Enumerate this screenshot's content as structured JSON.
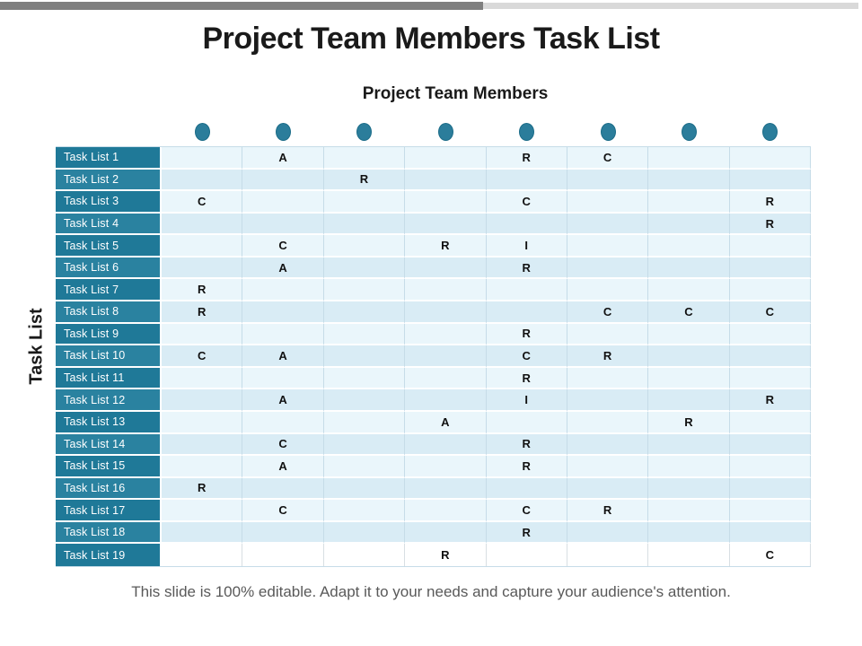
{
  "title": "Project Team Members Task List",
  "subtitle": "Project Team Members",
  "side_label": "Task List",
  "footer": "This slide is 100% editable. Adapt it to your needs and capture your audience's attention.",
  "colors": {
    "top_bar_dark": "#7f7f7f",
    "top_bar_light": "#d9d9d9",
    "header_teal": "#1f7998",
    "header_teal_alt": "#2a82a0",
    "circle_teal": "#2b7d9b",
    "row_light": "#eaf6fb",
    "row_dark": "#d9ecf5",
    "row_white": "#ffffff",
    "grid_line": "#c6dce8",
    "letter_color": "#111111",
    "footer_gray": "#595959",
    "title_black": "#1a1a1a"
  },
  "matrix": {
    "member_count": 8,
    "rows": [
      {
        "label": "Task List 1",
        "cells": [
          "",
          "A",
          "",
          "",
          "R",
          "C",
          "",
          ""
        ]
      },
      {
        "label": "Task List 2",
        "cells": [
          "",
          "",
          "R",
          "",
          "",
          "",
          "",
          ""
        ]
      },
      {
        "label": "Task List 3",
        "cells": [
          "C",
          "",
          "",
          "",
          "C",
          "",
          "",
          "R"
        ]
      },
      {
        "label": "Task List 4",
        "cells": [
          "",
          "",
          "",
          "",
          "",
          "",
          "",
          "R"
        ]
      },
      {
        "label": "Task List 5",
        "cells": [
          "",
          "C",
          "",
          "R",
          "I",
          "",
          "",
          ""
        ]
      },
      {
        "label": "Task List 6",
        "cells": [
          "",
          "A",
          "",
          "",
          "R",
          "",
          "",
          ""
        ]
      },
      {
        "label": "Task List 7",
        "cells": [
          "R",
          "",
          "",
          "",
          "",
          "",
          "",
          ""
        ]
      },
      {
        "label": "Task List 8",
        "cells": [
          "R",
          "",
          "",
          "",
          "",
          "C",
          "C",
          "C"
        ]
      },
      {
        "label": "Task List 9",
        "cells": [
          "",
          "",
          "",
          "",
          "R",
          "",
          "",
          ""
        ]
      },
      {
        "label": "Task List 10",
        "cells": [
          "C",
          "A",
          "",
          "",
          "C",
          "R",
          "",
          ""
        ]
      },
      {
        "label": "Task List 11",
        "cells": [
          "",
          "",
          "",
          "",
          "R",
          "",
          "",
          ""
        ]
      },
      {
        "label": "Task List 12",
        "cells": [
          "",
          "A",
          "",
          "",
          "I",
          "",
          "",
          "R"
        ]
      },
      {
        "label": "Task List 13",
        "cells": [
          "",
          "",
          "",
          "A",
          "",
          "",
          "R",
          ""
        ]
      },
      {
        "label": "Task List 14",
        "cells": [
          "",
          "C",
          "",
          "",
          "R",
          "",
          "",
          ""
        ]
      },
      {
        "label": "Task List 15",
        "cells": [
          "",
          "A",
          "",
          "",
          "R",
          "",
          "",
          ""
        ]
      },
      {
        "label": "Task List 16",
        "cells": [
          "R",
          "",
          "",
          "",
          "",
          "",
          "",
          ""
        ]
      },
      {
        "label": "Task List 17",
        "cells": [
          "",
          "C",
          "",
          "",
          "C",
          "R",
          "",
          ""
        ]
      },
      {
        "label": "Task List 18",
        "cells": [
          "",
          "",
          "",
          "",
          "R",
          "",
          "",
          ""
        ]
      },
      {
        "label": "Task List 19",
        "cells": [
          "",
          "",
          "",
          "R",
          "",
          "",
          "",
          "C"
        ]
      }
    ]
  }
}
